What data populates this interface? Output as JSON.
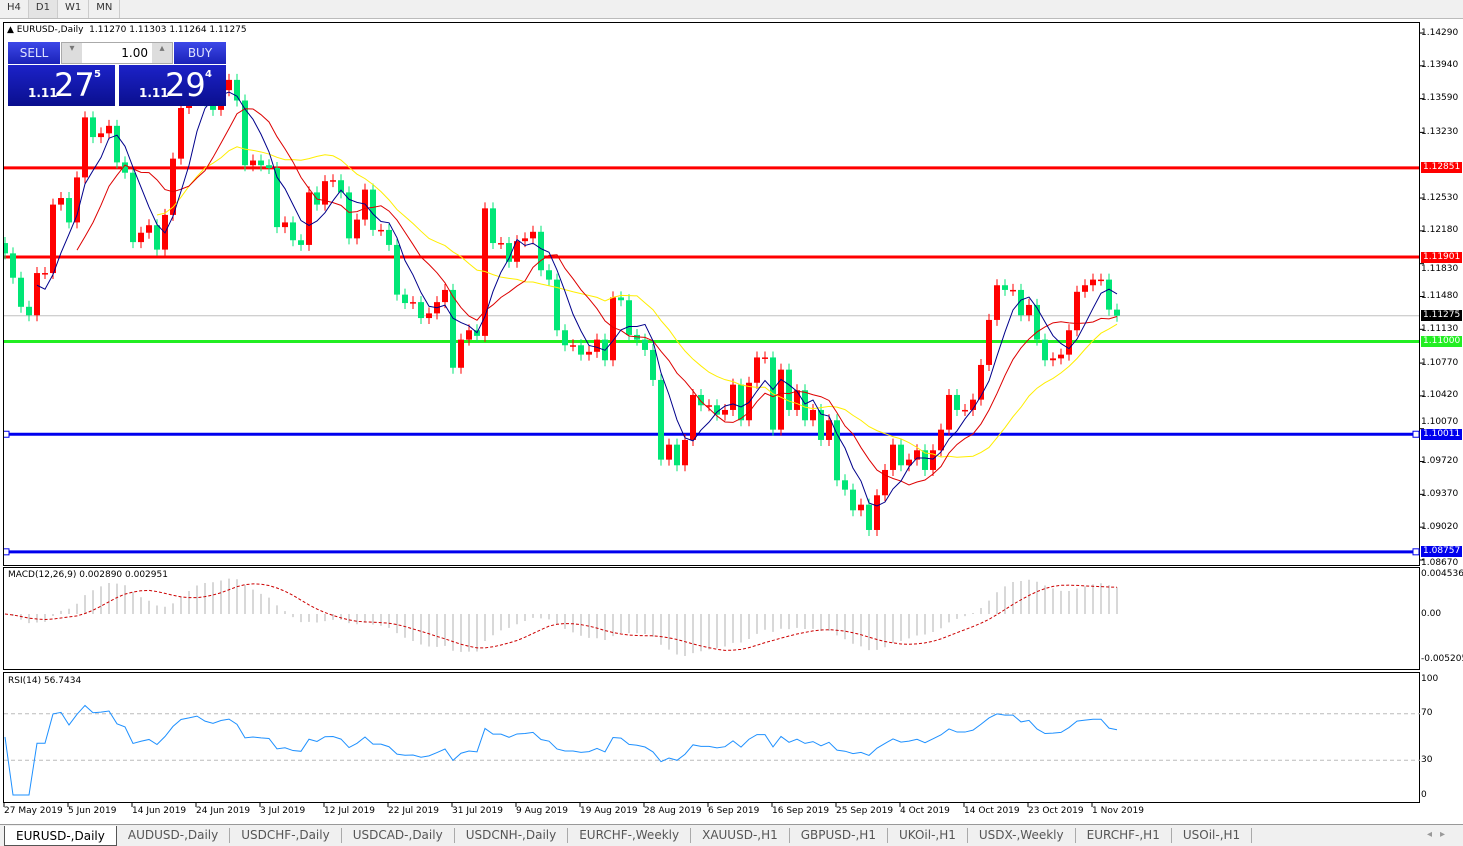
{
  "timeframes": [
    "H4",
    "D1",
    "W1",
    "MN"
  ],
  "active_timeframe": "D1",
  "chart": {
    "header": "EURUSD-,Daily",
    "ohlc": "1.11270 1.11303 1.11264 1.11275"
  },
  "trade_panel": {
    "sell_label": "SELL",
    "buy_label": "BUY",
    "lot": "1.00",
    "sell": {
      "big": "1.11",
      "main": "27",
      "pip": "5"
    },
    "buy": {
      "big": "1.11",
      "main": "29",
      "pip": "4"
    }
  },
  "colors": {
    "bull": "#ff0000",
    "bear": "#00e676",
    "ma_fast": "#00008b",
    "ma_mid": "#dd0000",
    "ma_slow": "#ffee00",
    "macd_hist": "#b0b0b0",
    "macd_signal": "#cc0000",
    "rsi": "#1e90ff"
  },
  "price_axis": [
    "1.14290",
    "1.13940",
    "1.13590",
    "1.13230",
    "1.12530",
    "1.12180",
    "1.11830",
    "1.11480",
    "1.11130",
    "1.10770",
    "1.10420",
    "1.10070",
    "1.09720",
    "1.09370",
    "1.09020",
    "1.08670"
  ],
  "levels": [
    {
      "price": "1.12851",
      "color": "#ff0000"
    },
    {
      "price": "1.11901",
      "color": "#ff0000"
    },
    {
      "price": "1.11000",
      "color": "#22ee22"
    },
    {
      "price": "1.10011",
      "color": "#0000ee"
    },
    {
      "price": "1.08757",
      "color": "#0000ee"
    }
  ],
  "current_price": "1.11275",
  "macd": {
    "label": "MACD(12,26,9) 0.002890 0.002951",
    "axis": [
      "0.004536",
      "0.00",
      "-0.005205"
    ]
  },
  "rsi": {
    "label": "RSI(14) 56.7434",
    "axis": [
      "100",
      "70",
      "30",
      "0"
    ]
  },
  "dates": [
    "27 May 2019",
    "5 Jun 2019",
    "14 Jun 2019",
    "24 Jun 2019",
    "3 Jul 2019",
    "12 Jul 2019",
    "22 Jul 2019",
    "31 Jul 2019",
    "9 Aug 2019",
    "19 Aug 2019",
    "28 Aug 2019",
    "6 Sep 2019",
    "16 Sep 2019",
    "25 Sep 2019",
    "4 Oct 2019",
    "14 Oct 2019",
    "23 Oct 2019",
    "1 Nov 2019"
  ],
  "chart_data": {
    "type": "candlestick",
    "symbol": "EURUSD-",
    "timeframe": "Daily",
    "first_open": 1.1205,
    "closes": [
      1.1194,
      1.1168,
      1.1137,
      1.1128,
      1.1173,
      1.1173,
      1.1246,
      1.1253,
      1.1227,
      1.1275,
      1.1339,
      1.1318,
      1.1322,
      1.133,
      1.1291,
      1.128,
      1.1206,
      1.1216,
      1.1224,
      1.1198,
      1.1235,
      1.1295,
      1.1349,
      1.1363,
      1.1379,
      1.1357,
      1.1347,
      1.1368,
      1.1379,
      1.1357,
      1.1288,
      1.1293,
      1.1288,
      1.1285,
      1.1222,
      1.1227,
      1.1208,
      1.1203,
      1.1259,
      1.1246,
      1.1271,
      1.1272,
      1.1259,
      1.121,
      1.123,
      1.1262,
      1.1219,
      1.1219,
      1.1203,
      1.115,
      1.1141,
      1.1142,
      1.1125,
      1.113,
      1.1142,
      1.1155,
      1.1072,
      1.1102,
      1.1112,
      1.1106,
      1.1242,
      1.1205,
      1.1205,
      1.1185,
      1.1207,
      1.121,
      1.1217,
      1.1176,
      1.1166,
      1.1112,
      1.1096,
      1.1096,
      1.1086,
      1.1089,
      1.1102,
      1.108,
      1.1147,
      1.1144,
      1.1107,
      1.1102,
      1.1091,
      1.1059,
      1.0974,
      1.099,
      1.0968,
      1.0995,
      1.1043,
      1.1032,
      1.1032,
      1.1022,
      1.1027,
      1.1054,
      1.1016,
      1.1056,
      1.1083,
      1.1083,
      1.1006,
      1.107,
      1.1027,
      1.1048,
      1.1016,
      1.1027,
      1.0995,
      1.1016,
      1.0952,
      1.0942,
      1.092,
      1.0926,
      1.0899,
      1.0936,
      1.0963,
      1.099,
      1.0968,
      1.0974,
      1.0984,
      1.0963,
      1.0984,
      1.1006,
      1.1043,
      1.1027,
      1.1027,
      1.1038,
      1.1075,
      1.1123,
      1.116,
      1.1155,
      1.1155,
      1.1128,
      1.1139,
      1.1102,
      1.108,
      1.1082,
      1.1086,
      1.1112,
      1.1153,
      1.116,
      1.1166,
      1.1166,
      1.1134,
      1.11275
    ],
    "ylim": [
      1.0867,
      1.1429
    ],
    "date_label_every_bars": 8
  },
  "tabs": [
    "EURUSD-,Daily",
    "AUDUSD-,Daily",
    "USDCHF-,Daily",
    "USDCAD-,Daily",
    "USDCNH-,Daily",
    "EURCHF-,Weekly",
    "XAUUSD-,H1",
    "GBPUSD-,H1",
    "UKOil-,H1",
    "USDX-,Weekly",
    "EURCHF-,H1",
    "USOil-,H1"
  ]
}
